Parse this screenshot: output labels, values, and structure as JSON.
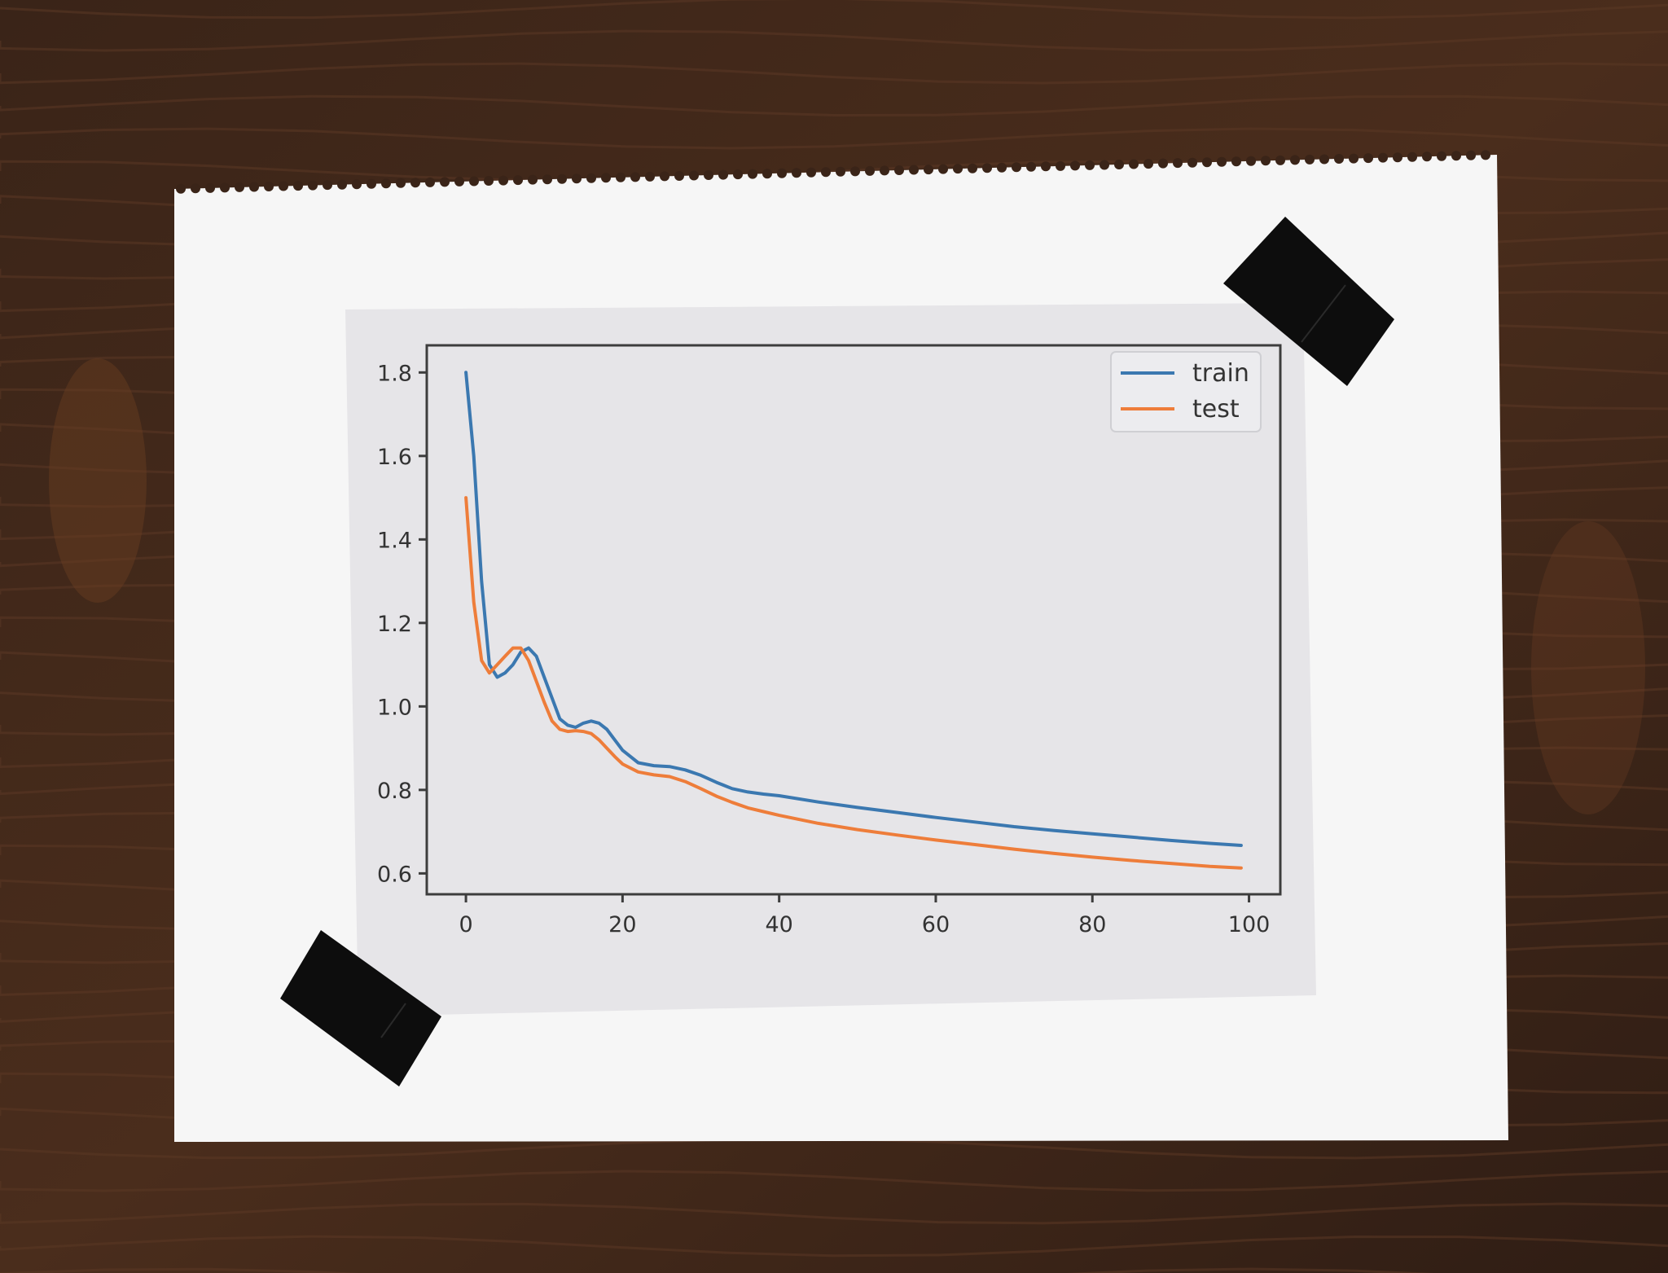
{
  "colors": {
    "train": "#3b78b0",
    "test": "#ee7d3a",
    "table": "#3b2418",
    "notebook_paper": "#f6f6f6",
    "print_paper": "#e6e5e8",
    "tape": "#0d0d0d"
  },
  "chart_data": {
    "type": "line",
    "title": "",
    "xlabel": "",
    "ylabel": "",
    "xlim": [
      -5,
      104
    ],
    "ylim": [
      0.55,
      1.865
    ],
    "x_ticks": [
      0,
      20,
      40,
      60,
      80,
      100
    ],
    "y_ticks": [
      0.6,
      0.8,
      1.0,
      1.2,
      1.4,
      1.6,
      1.8
    ],
    "x_tick_labels": [
      "0",
      "20",
      "40",
      "60",
      "80",
      "100"
    ],
    "y_tick_labels": [
      "0.6",
      "0.8",
      "1.0",
      "1.2",
      "1.4",
      "1.6",
      "1.8"
    ],
    "grid": false,
    "legend_position": "top-right",
    "series": [
      {
        "name": "train",
        "color": "#3b78b0",
        "x": [
          0,
          1,
          2,
          3,
          4,
          5,
          6,
          7,
          8,
          9,
          10,
          11,
          12,
          13,
          14,
          15,
          16,
          17,
          18,
          19,
          20,
          22,
          24,
          26,
          28,
          30,
          32,
          34,
          36,
          38,
          40,
          45,
          50,
          55,
          60,
          65,
          70,
          75,
          80,
          85,
          90,
          95,
          99
        ],
        "y": [
          1.8,
          1.6,
          1.3,
          1.1,
          1.07,
          1.08,
          1.1,
          1.13,
          1.14,
          1.12,
          1.07,
          1.02,
          0.97,
          0.955,
          0.95,
          0.96,
          0.965,
          0.96,
          0.945,
          0.92,
          0.895,
          0.865,
          0.858,
          0.856,
          0.848,
          0.835,
          0.818,
          0.803,
          0.795,
          0.79,
          0.786,
          0.771,
          0.758,
          0.746,
          0.734,
          0.723,
          0.712,
          0.703,
          0.695,
          0.687,
          0.679,
          0.672,
          0.667
        ]
      },
      {
        "name": "test",
        "color": "#ee7d3a",
        "x": [
          0,
          1,
          2,
          3,
          4,
          5,
          6,
          7,
          8,
          9,
          10,
          11,
          12,
          13,
          14,
          15,
          16,
          17,
          18,
          19,
          20,
          22,
          24,
          26,
          28,
          30,
          32,
          34,
          36,
          38,
          40,
          45,
          50,
          55,
          60,
          65,
          70,
          75,
          80,
          85,
          90,
          95,
          99
        ],
        "y": [
          1.5,
          1.25,
          1.11,
          1.08,
          1.1,
          1.12,
          1.14,
          1.14,
          1.11,
          1.06,
          1.01,
          0.965,
          0.945,
          0.94,
          0.942,
          0.94,
          0.935,
          0.92,
          0.9,
          0.88,
          0.862,
          0.843,
          0.836,
          0.832,
          0.82,
          0.803,
          0.785,
          0.77,
          0.757,
          0.748,
          0.739,
          0.72,
          0.705,
          0.692,
          0.68,
          0.669,
          0.658,
          0.648,
          0.639,
          0.631,
          0.624,
          0.617,
          0.613
        ]
      }
    ]
  }
}
